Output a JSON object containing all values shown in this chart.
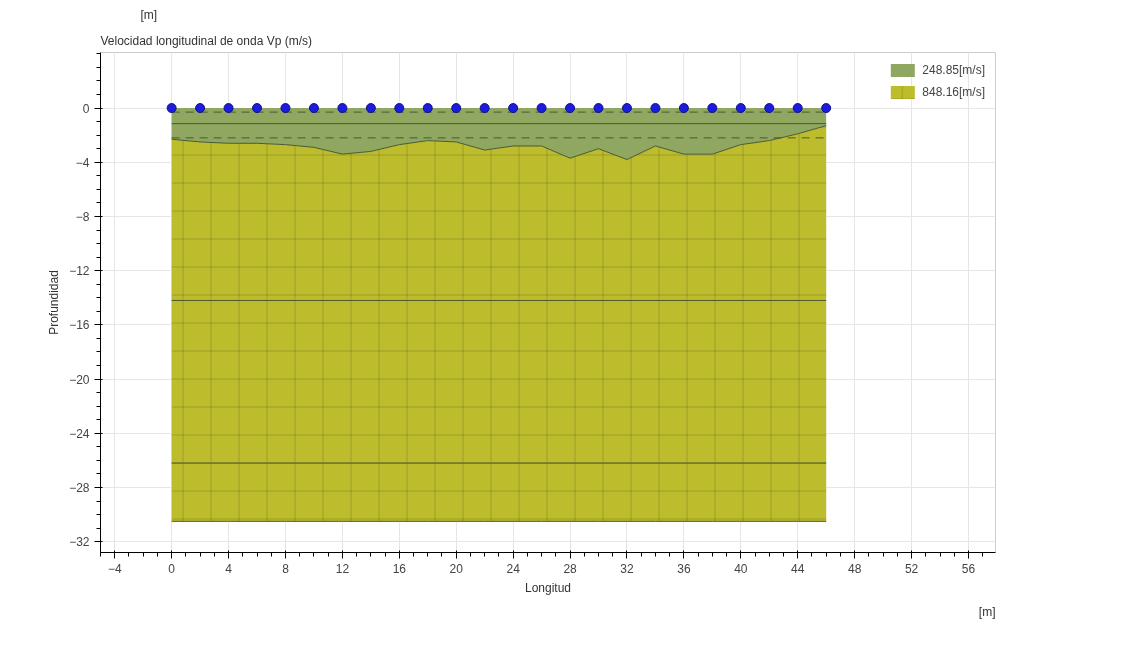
{
  "chart_data": {
    "type": "area",
    "title": "Velocidad longitudinal de onda Vp (m/s)",
    "xlabel": "Longitud",
    "ylabel": "Profundidad",
    "annotations": [
      "[m]",
      "[m]"
    ],
    "x": [
      0,
      2,
      4,
      6,
      8,
      10,
      12,
      14,
      16,
      18,
      20,
      22,
      24,
      26,
      28,
      30,
      32,
      34,
      36,
      38,
      40,
      42,
      44,
      46
    ],
    "stacked": true,
    "series": [
      {
        "name": "248.85[m/s]",
        "color": "#8fa760",
        "values": [
          -2.3,
          -2.5,
          -2.6,
          -2.6,
          -2.7,
          -2.9,
          -3.4,
          -3.2,
          -2.7,
          -2.4,
          -2.5,
          -3.1,
          -2.8,
          -2.8,
          -3.7,
          -3.0,
          -3.8,
          -2.8,
          -3.4,
          -3.4,
          -2.7,
          -2.4,
          -1.9,
          -1.3
        ]
      },
      {
        "name": "848.16[m/s]",
        "color": "#bcbc2c",
        "values": [
          -28.2,
          -28.0,
          -27.9,
          -27.9,
          -27.8,
          -27.6,
          -27.1,
          -27.3,
          -27.8,
          -28.1,
          -28.0,
          -27.4,
          -27.7,
          -27.7,
          -26.8,
          -27.5,
          -26.7,
          -27.7,
          -27.1,
          -27.1,
          -27.8,
          -28.1,
          -28.6,
          -29.2
        ]
      },
      {
        "type": "scatter",
        "color": "#1c1ce0",
        "marker": "circle",
        "values": [
          0,
          0,
          0,
          0,
          0,
          0,
          0,
          0,
          0,
          0,
          0,
          0,
          0,
          0,
          0,
          0,
          0,
          0,
          0,
          0,
          0,
          0,
          0,
          0
        ]
      }
    ],
    "ref_lines": [
      {
        "axis": "y",
        "value": -0.3,
        "line_style": "dashed",
        "color": "#4a5a30"
      },
      {
        "axis": "y",
        "value": -1.15,
        "line_style": "solid",
        "color": "#4a5a30"
      },
      {
        "axis": "y",
        "value": -2.2,
        "line_style": "dashed",
        "color": "#4a5a30"
      },
      {
        "axis": "y",
        "value": -14.2,
        "line_style": "solid",
        "color": "#4a5a30"
      },
      {
        "axis": "y",
        "value": -26.2,
        "line_style": "solid",
        "color": "#4a5a30"
      }
    ],
    "xlim": [
      -5,
      57.9
    ],
    "ylim": [
      -32.8,
      4.1
    ],
    "xticks": [
      -4,
      0,
      4,
      8,
      12,
      16,
      20,
      24,
      28,
      32,
      36,
      40,
      44,
      48,
      52,
      56
    ],
    "yticks": [
      0,
      -4,
      -8,
      -12,
      -16,
      -20,
      -24,
      -28,
      -32
    ],
    "grid": true,
    "legend": "top right"
  }
}
